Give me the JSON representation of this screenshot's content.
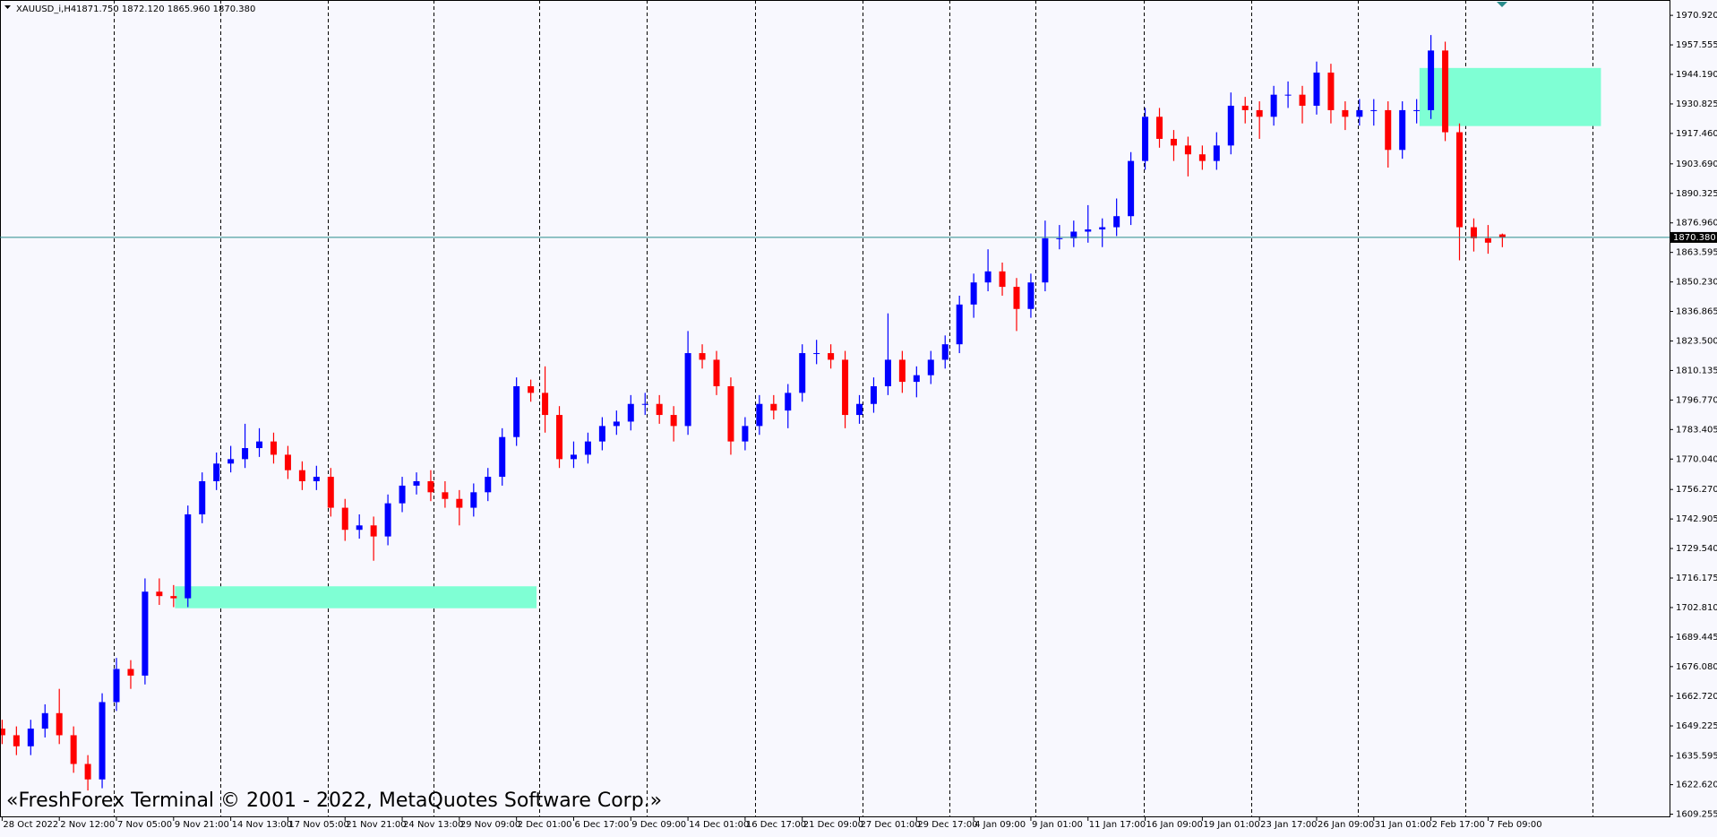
{
  "header": {
    "symbol": "XAUUSD_i,H4",
    "quote": "1871.750 1872.120 1865.960 1870.380"
  },
  "watermark": "«FreshForex Terminal © 2001 - 2022, MetaQuotes Software Corp.»",
  "chart_data": {
    "type": "candlestick",
    "open": [
      1648,
      1645,
      1640,
      1648,
      1655,
      1645,
      1632,
      1625,
      1660,
      1675,
      1672,
      1710,
      1708,
      1707,
      1745,
      1760,
      1768,
      1770,
      1775,
      1778,
      1772,
      1765,
      1760,
      1762,
      1748,
      1738,
      1740,
      1735,
      1750,
      1758,
      1760,
      1755,
      1752,
      1748,
      1755,
      1762,
      1780,
      1803,
      1800,
      1790,
      1770,
      1772,
      1778,
      1785,
      1787,
      1795,
      1795,
      1790,
      1785,
      1818,
      1815,
      1803,
      1778,
      1785,
      1795,
      1792,
      1800,
      1818,
      1818,
      1815,
      1790,
      1795,
      1803,
      1815,
      1805,
      1808,
      1815,
      1822,
      1840,
      1850,
      1855,
      1848,
      1838,
      1850,
      1870,
      1870,
      1873,
      1874,
      1875,
      1880,
      1905,
      1925,
      1915,
      1912,
      1908,
      1905,
      1912,
      1930,
      1928,
      1925,
      1935,
      1935,
      1930,
      1945,
      1928,
      1925,
      1928,
      1928,
      1910,
      1928,
      1928,
      1955,
      1918,
      1875,
      1870,
      1871.75
    ],
    "high": [
      1652,
      1649,
      1652,
      1659,
      1666,
      1649,
      1636,
      1664,
      1680,
      1679,
      1716,
      1716,
      1713,
      1749,
      1764,
      1773,
      1776,
      1786,
      1784,
      1782,
      1776,
      1769,
      1767,
      1766,
      1752,
      1745,
      1744,
      1754,
      1762,
      1764,
      1765,
      1760,
      1756,
      1759,
      1766,
      1784,
      1807,
      1806,
      1812,
      1794,
      1778,
      1782,
      1789,
      1792,
      1799,
      1800,
      1799,
      1794,
      1828,
      1822,
      1819,
      1807,
      1789,
      1799,
      1799,
      1804,
      1822,
      1824,
      1822,
      1819,
      1799,
      1807,
      1836,
      1819,
      1812,
      1819,
      1826,
      1844,
      1854,
      1865,
      1859,
      1852,
      1854,
      1878,
      1876,
      1878,
      1885,
      1879,
      1888,
      1909,
      1929,
      1929,
      1919,
      1916,
      1912,
      1918,
      1936,
      1934,
      1932,
      1939,
      1941,
      1939,
      1950,
      1949,
      1932,
      1933,
      1933,
      1932,
      1932,
      1933,
      1962,
      1959,
      1922,
      1879,
      1876,
      1872.12
    ],
    "low": [
      1641,
      1636,
      1636,
      1644,
      1641,
      1628,
      1620,
      1621,
      1656,
      1666,
      1668,
      1704,
      1703,
      1703,
      1741,
      1756,
      1764,
      1766,
      1771,
      1768,
      1761,
      1756,
      1756,
      1744,
      1733,
      1734,
      1724,
      1731,
      1746,
      1754,
      1751,
      1748,
      1740,
      1744,
      1751,
      1758,
      1776,
      1796,
      1782,
      1766,
      1766,
      1768,
      1774,
      1781,
      1783,
      1790,
      1786,
      1778,
      1781,
      1811,
      1799,
      1772,
      1774,
      1781,
      1788,
      1784,
      1796,
      1813,
      1811,
      1784,
      1786,
      1791,
      1799,
      1800,
      1798,
      1804,
      1811,
      1818,
      1834,
      1846,
      1844,
      1828,
      1834,
      1846,
      1865,
      1866,
      1868,
      1866,
      1871,
      1876,
      1901,
      1911,
      1905,
      1898,
      1901,
      1901,
      1908,
      1922,
      1915,
      1921,
      1929,
      1922,
      1926,
      1922,
      1919,
      1921,
      1921,
      1902,
      1906,
      1922,
      1924,
      1914,
      1860,
      1864,
      1863,
      1865.96
    ],
    "close": [
      1645,
      1640,
      1648,
      1655,
      1645,
      1632,
      1625,
      1660,
      1675,
      1672,
      1710,
      1708,
      1707,
      1745,
      1760,
      1768,
      1770,
      1775,
      1778,
      1772,
      1765,
      1760,
      1762,
      1748,
      1738,
      1740,
      1735,
      1750,
      1758,
      1760,
      1755,
      1752,
      1748,
      1755,
      1762,
      1780,
      1803,
      1800,
      1790,
      1770,
      1772,
      1778,
      1785,
      1787,
      1795,
      1795,
      1790,
      1785,
      1818,
      1815,
      1803,
      1778,
      1785,
      1795,
      1792,
      1800,
      1818,
      1818,
      1815,
      1790,
      1795,
      1803,
      1815,
      1805,
      1808,
      1815,
      1822,
      1840,
      1850,
      1855,
      1848,
      1838,
      1850,
      1870,
      1870,
      1873,
      1874,
      1875,
      1880,
      1905,
      1925,
      1915,
      1912,
      1908,
      1905,
      1912,
      1930,
      1928,
      1925,
      1935,
      1935,
      1930,
      1945,
      1928,
      1925,
      1928,
      1928,
      1910,
      1928,
      1928,
      1955,
      1918,
      1875,
      1870,
      1868,
      1870.38
    ],
    "up_color": "#0000ff",
    "down_color": "#ff0000",
    "xlim": [
      -0.15,
      116.7
    ],
    "xticks": [
      {
        "value": 0,
        "label": "28 Oct 2022"
      },
      {
        "value": 4,
        "label": "2 Nov 12:00"
      },
      {
        "value": 8,
        "label": "7 Nov 05:00"
      },
      {
        "value": 12,
        "label": "9 Nov 21:00"
      },
      {
        "value": 16,
        "label": "14 Nov 13:00"
      },
      {
        "value": 20,
        "label": "17 Nov 05:00"
      },
      {
        "value": 24,
        "label": "21 Nov 21:00"
      },
      {
        "value": 28,
        "label": "24 Nov 13:00"
      },
      {
        "value": 32,
        "label": "29 Nov 09:00"
      },
      {
        "value": 36,
        "label": "2 Dec 01:00"
      },
      {
        "value": 40,
        "label": "6 Dec 17:00"
      },
      {
        "value": 44,
        "label": "9 Dec 09:00"
      },
      {
        "value": 48,
        "label": "14 Dec 01:00"
      },
      {
        "value": 52,
        "label": "16 Dec 17:00"
      },
      {
        "value": 56,
        "label": "21 Dec 09:00"
      },
      {
        "value": 60,
        "label": "27 Dec 01:00"
      },
      {
        "value": 64,
        "label": "29 Dec 17:00"
      },
      {
        "value": 68,
        "label": "4 Jan 09:00"
      },
      {
        "value": 72,
        "label": "9 Jan 01:00"
      },
      {
        "value": 76,
        "label": "11 Jan 17:00"
      },
      {
        "value": 80,
        "label": "16 Jan 09:00"
      },
      {
        "value": 84,
        "label": "19 Jan 01:00"
      },
      {
        "value": 88,
        "label": "23 Jan 17:00"
      },
      {
        "value": 92,
        "label": "26 Jan 09:00"
      },
      {
        "value": 96,
        "label": "31 Jan 01:00"
      },
      {
        "value": 100,
        "label": "2 Feb 17:00"
      },
      {
        "value": 104,
        "label": "7 Feb 09:00"
      }
    ],
    "xgrid": [
      7.8,
      15.3,
      22.8,
      30.2,
      37.6,
      45.1,
      52.7,
      60.2,
      66.3,
      72.3,
      79.9,
      87.4,
      94.9,
      102.4,
      111.3
    ],
    "ylim": [
      1608.26,
      1977.87
    ],
    "yticks": [
      {
        "value": 1609.255,
        "label": "1609.255"
      },
      {
        "value": 1622.62,
        "label": "1622.620"
      },
      {
        "value": 1635.595,
        "label": "1635.595"
      },
      {
        "value": 1649.225,
        "label": "1649.225"
      },
      {
        "value": 1662.72,
        "label": "1662.720"
      },
      {
        "value": 1676.08,
        "label": "1676.080"
      },
      {
        "value": 1689.445,
        "label": "1689.445"
      },
      {
        "value": 1702.81,
        "label": "1702.810"
      },
      {
        "value": 1716.175,
        "label": "1716.175"
      },
      {
        "value": 1729.54,
        "label": "1729.540"
      },
      {
        "value": 1742.905,
        "label": "1742.905"
      },
      {
        "value": 1756.27,
        "label": "1756.270"
      },
      {
        "value": 1770.04,
        "label": "1770.040"
      },
      {
        "value": 1783.405,
        "label": "1783.405"
      },
      {
        "value": 1796.77,
        "label": "1796.770"
      },
      {
        "value": 1810.135,
        "label": "1810.135"
      },
      {
        "value": 1823.5,
        "label": "1823.500"
      },
      {
        "value": 1836.865,
        "label": "1836.865"
      },
      {
        "value": 1850.23,
        "label": "1850.230"
      },
      {
        "value": 1863.595,
        "label": "1863.595"
      },
      {
        "value": 1876.96,
        "label": "1876.960"
      },
      {
        "value": 1890.325,
        "label": "1890.325"
      },
      {
        "value": 1903.69,
        "label": "1903.690"
      },
      {
        "value": 1917.46,
        "label": "1917.460"
      },
      {
        "value": 1930.825,
        "label": "1930.825"
      },
      {
        "value": 1944.19,
        "label": "1944.190"
      },
      {
        "value": 1957.555,
        "label": "1957.555"
      },
      {
        "value": 1970.92,
        "label": "1970.920"
      }
    ],
    "current_price": {
      "value": 1870.38,
      "label": "1870.380"
    },
    "price_line_color": "#2a8c8c",
    "zones": [
      {
        "x": [
          12.1,
          37.4
        ],
        "y": [
          1702.5,
          1712.44
        ]
      },
      {
        "x": [
          99.2,
          111.9
        ],
        "y": [
          1920.8,
          1947.1
        ]
      }
    ],
    "zone_color": "#7fffd4"
  }
}
